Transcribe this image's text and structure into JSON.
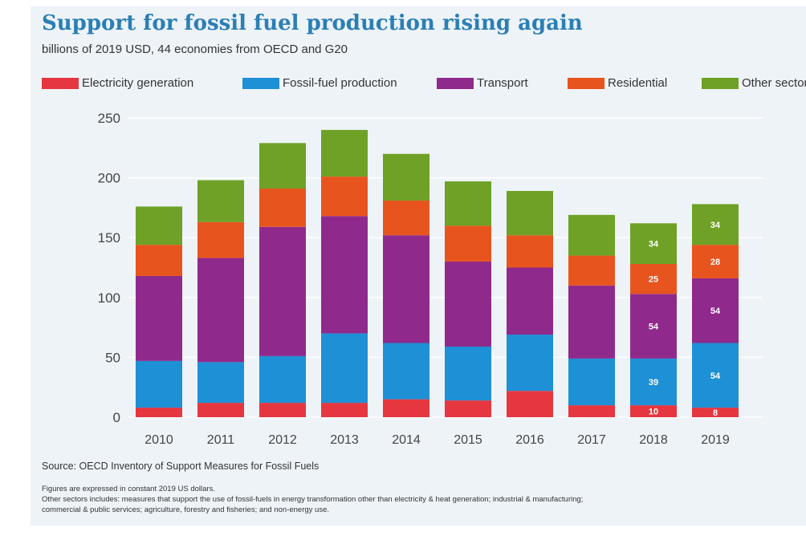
{
  "title": "Support for fossil fuel production rising again",
  "subtitle": "billions of 2019 USD, 44 economies from OECD and G20",
  "source": "Source: OECD Inventory of Support Measures for Fossil Fuels",
  "notes": [
    "Figures are expressed in constant 2019 US dollars.",
    "Other sectors includes: measures that support the use of fossil-fuels in energy transformation other than electricity & heat generation; industrial & manufacturing;",
    "commercial & public services; agriculture, forestry and fisheries; and non-energy use."
  ],
  "colors": {
    "background": "#eef3f8",
    "title": "#2a7fb6",
    "gridline": "#ffffff"
  },
  "chart_data": {
    "type": "bar",
    "stacked": true,
    "categories": [
      "2010",
      "2011",
      "2012",
      "2013",
      "2014",
      "2015",
      "2016",
      "2017",
      "2018",
      "2019"
    ],
    "ylim": [
      0,
      250
    ],
    "yticks": [
      0,
      50,
      100,
      150,
      200,
      250
    ],
    "grid": true,
    "legend_position": "top",
    "series": [
      {
        "name": "Electricity generation",
        "color": "#e6363f",
        "values": [
          8,
          12,
          12,
          12,
          15,
          14,
          22,
          10,
          10,
          8
        ],
        "labels": [
          "",
          "",
          "",
          "",
          "",
          "",
          "",
          "",
          "10",
          "8"
        ]
      },
      {
        "name": "Fossil-fuel production",
        "color": "#1e90d6",
        "values": [
          39,
          34,
          39,
          58,
          47,
          45,
          47,
          39,
          39,
          54
        ],
        "labels": [
          "",
          "",
          "",
          "",
          "",
          "",
          "",
          "",
          "39",
          "54"
        ]
      },
      {
        "name": "Transport",
        "color": "#8f2a8c",
        "values": [
          71,
          87,
          108,
          98,
          90,
          71,
          56,
          61,
          54,
          54
        ],
        "labels": [
          "",
          "",
          "",
          "",
          "",
          "",
          "",
          "",
          "54",
          "54"
        ]
      },
      {
        "name": "Residential",
        "color": "#e8541e",
        "values": [
          26,
          30,
          32,
          33,
          29,
          30,
          27,
          25,
          25,
          28
        ],
        "labels": [
          "",
          "",
          "",
          "",
          "",
          "",
          "",
          "",
          "25",
          "28"
        ]
      },
      {
        "name": "Other sectors",
        "color": "#6ea126",
        "values": [
          32,
          35,
          38,
          39,
          39,
          37,
          37,
          34,
          34,
          34
        ],
        "labels": [
          "",
          "",
          "",
          "",
          "",
          "",
          "",
          "",
          "34",
          "34"
        ]
      }
    ]
  }
}
